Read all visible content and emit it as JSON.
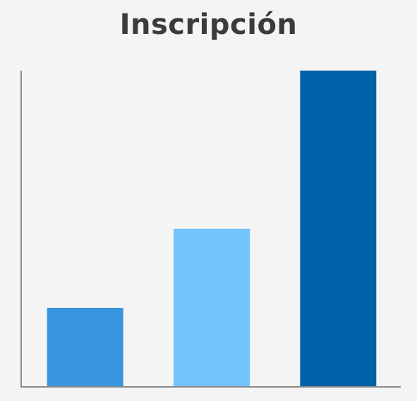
{
  "chart_data": {
    "type": "bar",
    "title": "Inscripción",
    "categories": [
      "",
      "",
      ""
    ],
    "values": [
      25,
      50,
      100
    ],
    "colors": [
      "#3796dd",
      "#73c3fd",
      "#0062a9"
    ],
    "ylim": [
      0,
      100
    ],
    "xlabel": "",
    "ylabel": "",
    "grid": false,
    "legend": "none"
  }
}
